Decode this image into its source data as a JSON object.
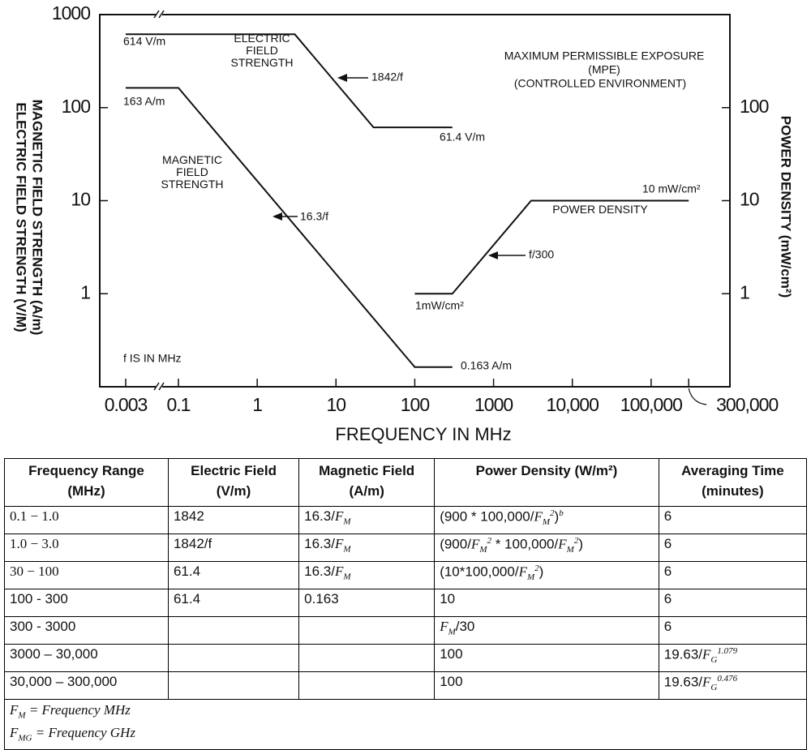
{
  "chart_data": {
    "type": "line",
    "x_label": "FREQUENCY IN MHz",
    "y_label": [
      "MAGNETIC FIELD STRENGTH (A/m)",
      "ELECTRIC FIELD STRENGTH (V/M)"
    ],
    "y2_label": "POWER DENSITY (mW/cm²)",
    "x_scale": "log",
    "y_scale": "log",
    "grid": false,
    "xlim": [
      0.003,
      1000000
    ],
    "ylim": [
      0.1,
      1000
    ],
    "y2lim": [
      0.1,
      1000
    ],
    "xticks": [
      0.003,
      0.1,
      1,
      10,
      100,
      1000,
      {
        "value": 10000,
        "label": "10,000"
      },
      {
        "value": 100000,
        "label": "100,000"
      },
      {
        "value": 300000,
        "label": "300,000"
      }
    ],
    "yticks": [
      1,
      10,
      100,
      1000
    ],
    "y2ticks": [
      1,
      10,
      100
    ],
    "series": [
      {
        "name": "ELECTRIC FIELD STRENGTH",
        "color": "#111111",
        "x": [
          0.003,
          3,
          30,
          300
        ],
        "values": [
          614,
          614,
          61.4,
          61.4
        ]
      },
      {
        "name": "MAGNETIC FIELD STRENGTH",
        "color": "#111111",
        "x": [
          0.003,
          0.1,
          100,
          300
        ],
        "values": [
          163,
          163,
          0.163,
          0.163
        ]
      },
      {
        "name": "POWER DENSITY",
        "color": "#111111",
        "axis": "y2",
        "x": [
          100,
          300,
          3000,
          300000
        ],
        "values": [
          1,
          1,
          10,
          10
        ]
      }
    ],
    "annotations": [
      "614 V/m",
      "1842/f",
      "61.4 V/m",
      "163 A/m",
      "16.3/f",
      "0.163 A/m",
      "MAXIMUM PERMISSIBLE EXPOSURE",
      "(MPE)",
      "(CONTROLLED ENVIRONMENT)",
      "10 mW/cm²",
      "f/300",
      "1mW/cm²",
      "f IS IN MHz"
    ]
  },
  "table": {
    "header": [
      "Frequency Range (MHz)",
      "Electric Field (V/m)",
      "Magnetic Field (A/m)",
      "Power Density (W/m²)",
      "Averaging Time (minutes)"
    ],
    "rows": [
      [
        "0.1 − 1.0",
        "1842",
        [
          {
            "text": "16.3/"
          },
          {
            "italic": "F"
          },
          {
            "sub": "M"
          }
        ],
        [
          {
            "text": "(900 * 100,000/"
          },
          {
            "italic": "F"
          },
          {
            "sub": "M"
          },
          {
            "sup": "2"
          },
          {
            "text": ")"
          },
          {
            "sup": "b"
          }
        ],
        "6"
      ],
      [
        "1.0 − 3.0",
        "1842/f",
        [
          {
            "text": "16.3/"
          },
          {
            "italic": "F"
          },
          {
            "sub": "M"
          }
        ],
        [
          {
            "text": "(900/"
          },
          {
            "italic": "F"
          },
          {
            "sub": "M"
          },
          {
            "sup": "2"
          },
          {
            "text": " * 100,000/"
          },
          {
            "italic": "F"
          },
          {
            "sub": "M"
          },
          {
            "sup": "2"
          },
          {
            "text": ")"
          }
        ],
        "6"
      ],
      [
        "30 − 100",
        "61.4",
        [
          {
            "text": "16.3/"
          },
          {
            "italic": "F"
          },
          {
            "sub": "M"
          }
        ],
        [
          {
            "text": "(10*100,000/"
          },
          {
            "italic": "F"
          },
          {
            "sub": "M"
          },
          {
            "sup": "2"
          },
          {
            "text": ")"
          }
        ],
        "6"
      ],
      [
        "100 - 300",
        "61.4",
        "0.163",
        "10",
        "6"
      ],
      [
        "300 - 3000",
        null,
        null,
        [
          {
            "italic": "F"
          },
          {
            "sub": "M"
          },
          {
            "text": "/30"
          }
        ],
        "6"
      ],
      [
        "3000 – 30,000",
        null,
        null,
        "100",
        [
          {
            "text": "19.63/"
          },
          {
            "italic": "F"
          },
          {
            "sub": "G"
          },
          {
            "sup": "1.079"
          }
        ]
      ],
      [
        "30,000 – 300,000",
        null,
        null,
        "100",
        [
          {
            "text": "19.63/"
          },
          {
            "italic": "F"
          },
          {
            "sub": "G"
          },
          {
            "sup": "0.476"
          }
        ]
      ]
    ],
    "footer": [
      [
        {
          "italic": "F"
        },
        {
          "sub": "M"
        },
        {
          "text": " = "
        },
        {
          "italic": "Frequency MHz"
        }
      ],
      [
        {
          "italic": "F"
        },
        {
          "sub": "MG"
        },
        {
          "text": " = "
        },
        {
          "italic": "Frequency GHz"
        }
      ]
    ]
  }
}
